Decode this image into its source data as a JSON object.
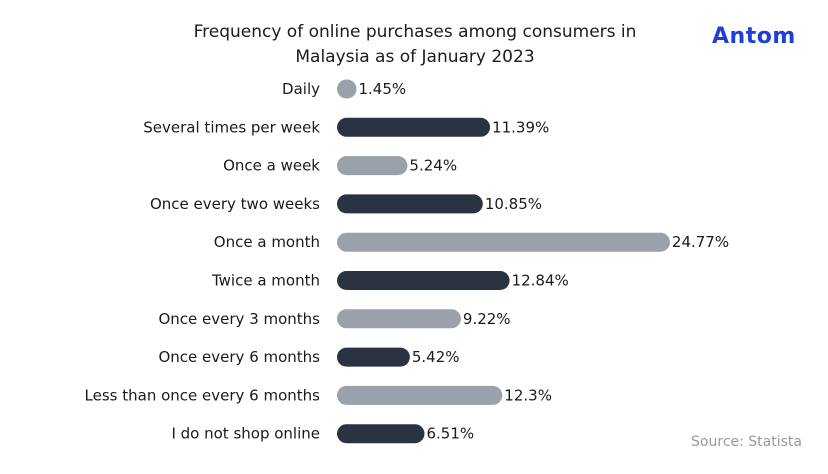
{
  "header": {
    "title_line1": "Frequency of online purchases among consumers in",
    "title_line2": "Malaysia as of January 2023",
    "logo_text": "Antom"
  },
  "footer": {
    "source": "Source: Statista"
  },
  "colors": {
    "dark_bar": "#2b3242",
    "light_bar": "#9aa1aa",
    "logo": "#1f3fd6"
  },
  "chart_data": {
    "type": "bar",
    "orientation": "horizontal",
    "title": "Frequency of online purchases among consumers in Malaysia as of January 2023",
    "xlabel": "",
    "ylabel": "",
    "xlim": [
      0,
      25
    ],
    "grid": false,
    "legend": "none",
    "categories": [
      "Daily",
      "Several times per week",
      "Once a week",
      "Once every two weeks",
      "Once a month",
      "Twice a month",
      "Once every 3 months",
      "Once every 6 months",
      "Less than once every 6 months",
      "I do not shop online"
    ],
    "values": [
      1.45,
      11.39,
      5.24,
      10.85,
      24.77,
      12.84,
      9.22,
      5.42,
      12.3,
      6.51
    ],
    "value_labels": [
      "1.45%",
      "11.39%",
      "5.24%",
      "10.85%",
      "24.77%",
      "12.84%",
      "9.22%",
      "5.42%",
      "12.3%",
      "6.51%"
    ],
    "bar_colors": [
      "light",
      "dark",
      "light",
      "dark",
      "light",
      "dark",
      "light",
      "dark",
      "light",
      "dark"
    ]
  }
}
